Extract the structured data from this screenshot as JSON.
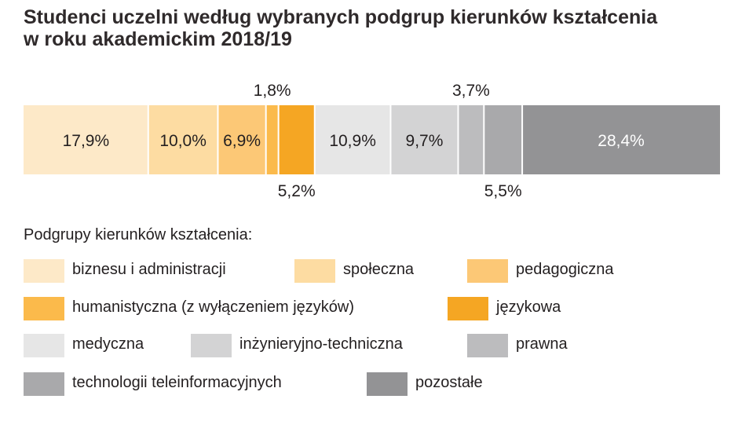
{
  "chart_data": {
    "type": "bar",
    "orientation": "horizontal-stacked",
    "title_line1": "Studenci uczelni według wybranych podgrup kierunków kształcenia",
    "title_line2": "w roku akademickim 2018/19",
    "legend_title": "Podgrupy kierunków kształcenia:",
    "series": [
      {
        "name": "biznesu i administracji",
        "value": 17.9,
        "label": "17,9%",
        "color": "#fde9c8",
        "label_pos": "inside",
        "label_color": "#231f20"
      },
      {
        "name": "społeczna",
        "value": 10.0,
        "label": "10,0%",
        "color": "#fddca2",
        "label_pos": "inside",
        "label_color": "#231f20"
      },
      {
        "name": "pedagogiczna",
        "value": 6.9,
        "label": "6,9%",
        "color": "#fcc876",
        "label_pos": "inside",
        "label_color": "#231f20"
      },
      {
        "name": "humanistyczna (z wyłączeniem języków)",
        "value": 1.8,
        "label": "1,8%",
        "color": "#fbba4b",
        "label_pos": "above",
        "label_color": "#231f20"
      },
      {
        "name": "językowa",
        "value": 5.2,
        "label": "5,2%",
        "color": "#f5a623",
        "label_pos": "below",
        "label_color": "#231f20"
      },
      {
        "name": "medyczna",
        "value": 10.9,
        "label": "10,9%",
        "color": "#e6e6e6",
        "label_pos": "inside",
        "label_color": "#231f20"
      },
      {
        "name": "inżynieryjno-techniczna",
        "value": 9.7,
        "label": "9,7%",
        "color": "#d3d3d4",
        "label_pos": "inside",
        "label_color": "#231f20"
      },
      {
        "name": "prawna",
        "value": 3.7,
        "label": "3,7%",
        "color": "#bcbcbe",
        "label_pos": "above",
        "label_color": "#231f20"
      },
      {
        "name": "technologii teleinformacyjnych",
        "value": 5.5,
        "label": "5,5%",
        "color": "#a9a9ab",
        "label_pos": "below",
        "label_color": "#231f20"
      },
      {
        "name": "pozostałe",
        "value": 28.4,
        "label": "28,4%",
        "color": "#939395",
        "label_pos": "inside",
        "label_color": "#ffffff"
      }
    ]
  }
}
